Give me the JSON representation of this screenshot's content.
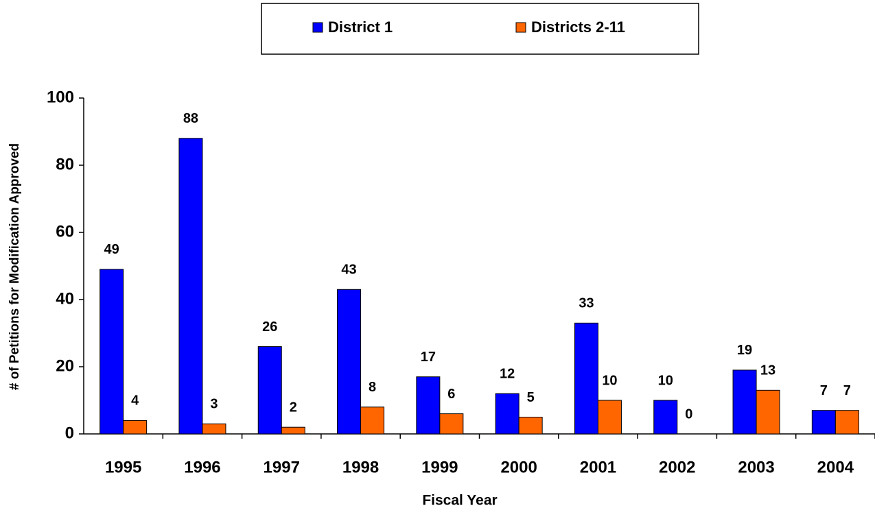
{
  "chart_data": {
    "type": "bar",
    "categories": [
      "1995",
      "1996",
      "1997",
      "1998",
      "1999",
      "2000",
      "2001",
      "2002",
      "2003",
      "2004"
    ],
    "series": [
      {
        "name": "District 1",
        "color": "#0000ff",
        "values": [
          49,
          88,
          26,
          43,
          17,
          12,
          33,
          10,
          19,
          7
        ]
      },
      {
        "name": "Districts 2-11",
        "color": "#ff6600",
        "values": [
          4,
          3,
          2,
          8,
          6,
          5,
          10,
          0,
          13,
          7
        ]
      }
    ],
    "x_label": "Fiscal Year",
    "y_label": "# of Petitions for Modification Approved",
    "ylim": [
      0,
      100
    ],
    "yticks": [
      0,
      20,
      40,
      60,
      80,
      100
    ],
    "grid": false,
    "legend_position": "top",
    "data_labels": true
  }
}
